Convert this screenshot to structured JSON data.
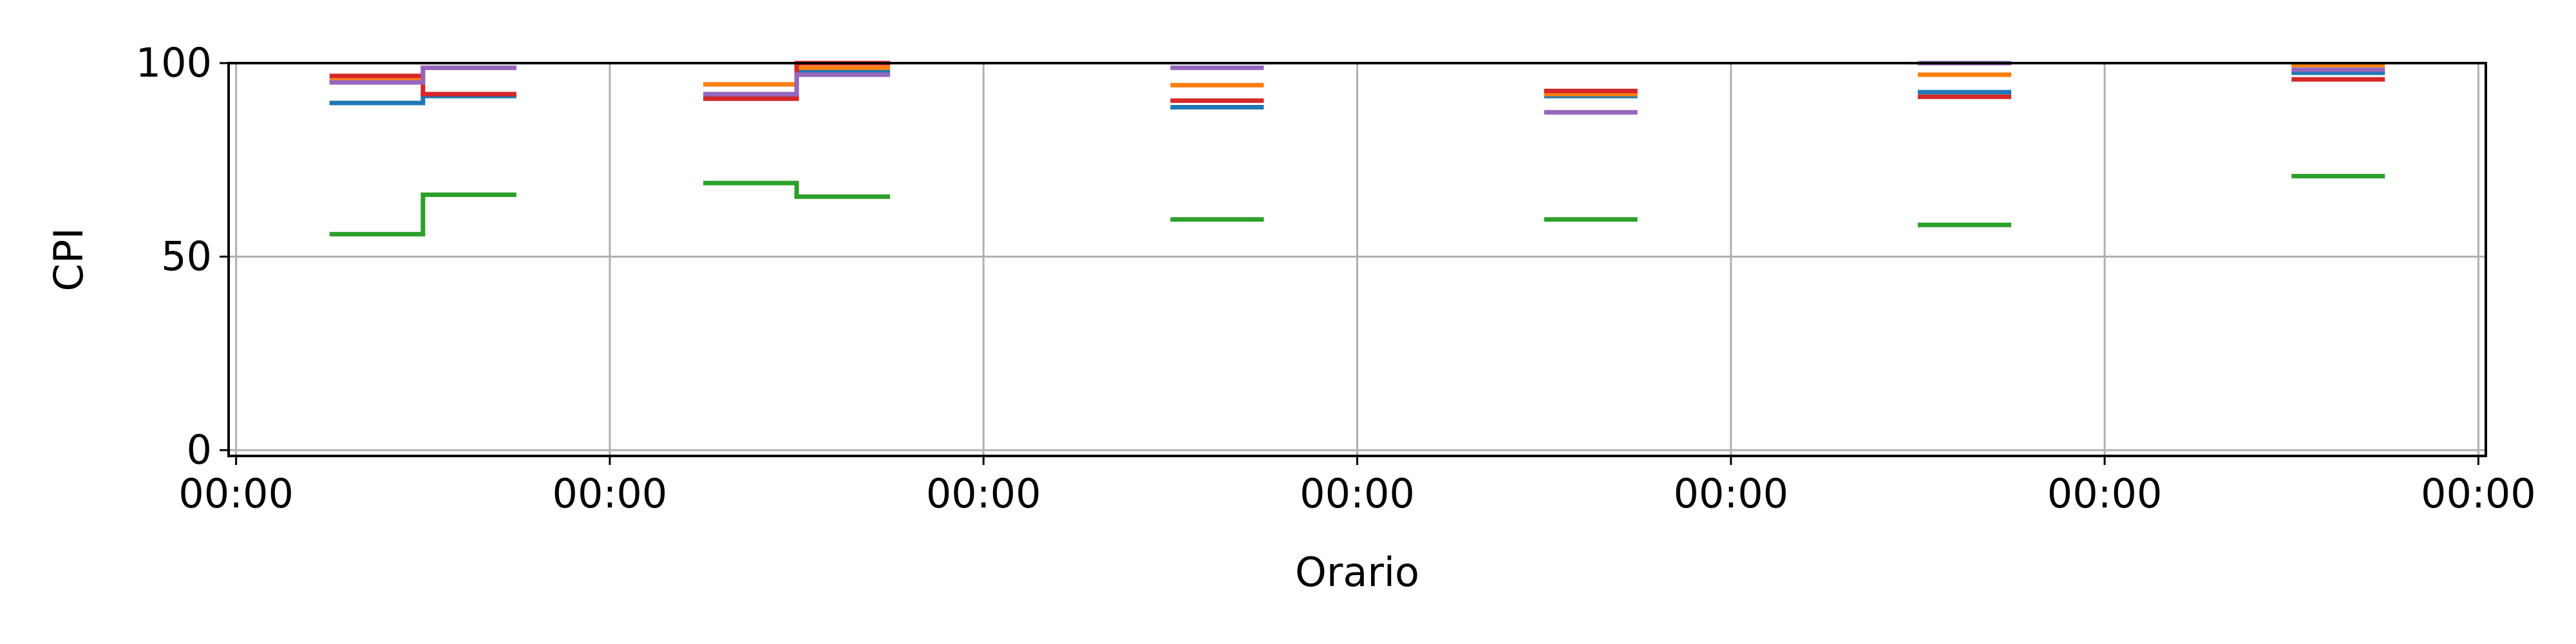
{
  "chart_data": {
    "type": "line",
    "title": "",
    "xlabel": "Orario",
    "ylabel": "CPI",
    "ylim": [
      0,
      100
    ],
    "yticks": [
      0,
      50,
      100
    ],
    "xlim": [
      0,
      6
    ],
    "xticks": [
      {
        "value": 0,
        "label": "00:00"
      },
      {
        "value": 1,
        "label": "00:00"
      },
      {
        "value": 2,
        "label": "00:00"
      },
      {
        "value": 3,
        "label": "00:00"
      },
      {
        "value": 4,
        "label": "00:00"
      },
      {
        "value": 5,
        "label": "00:00"
      },
      {
        "value": 6,
        "label": "00:00"
      }
    ],
    "grid": true,
    "legend": null,
    "drawstyle": "steps-post",
    "series": [
      {
        "color": "#1f77b4",
        "segments": [
          [
            [
              0.25,
              89.7
            ],
            [
              0.5,
              91.5
            ],
            [
              0.75,
              91.5
            ]
          ],
          [
            [
              1.25,
              91.7
            ],
            [
              1.5,
              98.0
            ],
            [
              1.75,
              98.0
            ]
          ],
          [
            [
              2.5,
              88.6
            ],
            [
              2.75,
              88.6
            ]
          ],
          [
            [
              3.5,
              91.5
            ],
            [
              3.75,
              91.5
            ]
          ],
          [
            [
              4.5,
              92.5
            ],
            [
              4.75,
              92.5
            ]
          ],
          [
            [
              5.5,
              97.5
            ],
            [
              5.75,
              97.5
            ]
          ]
        ]
      },
      {
        "color": "#ff7f0e",
        "segments": [
          [
            [
              0.25,
              95.5
            ],
            [
              0.5,
              98.8
            ],
            [
              0.75,
              98.8
            ]
          ],
          [
            [
              1.25,
              94.5
            ],
            [
              1.5,
              98.8
            ],
            [
              1.75,
              98.8
            ]
          ],
          [
            [
              2.5,
              94.3
            ],
            [
              2.75,
              94.3
            ]
          ],
          [
            [
              3.5,
              92.0
            ],
            [
              3.75,
              92.0
            ]
          ],
          [
            [
              4.5,
              97.0
            ],
            [
              4.75,
              97.0
            ]
          ],
          [
            [
              5.5,
              99.5
            ],
            [
              5.75,
              99.5
            ]
          ]
        ]
      },
      {
        "color": "#2ca02c",
        "segments": [
          [
            [
              0.25,
              55.8
            ],
            [
              0.5,
              66.0
            ],
            [
              0.75,
              66.0
            ]
          ],
          [
            [
              1.25,
              69.0
            ],
            [
              1.5,
              65.5
            ],
            [
              1.75,
              65.5
            ]
          ],
          [
            [
              2.5,
              59.6
            ],
            [
              2.75,
              59.6
            ]
          ],
          [
            [
              3.5,
              59.6
            ],
            [
              3.75,
              59.6
            ]
          ],
          [
            [
              4.5,
              58.2
            ],
            [
              4.75,
              58.2
            ]
          ],
          [
            [
              5.5,
              70.8
            ],
            [
              5.75,
              70.8
            ]
          ]
        ]
      },
      {
        "color": "#d62728",
        "segments": [
          [
            [
              0.25,
              96.7
            ],
            [
              0.5,
              92.0
            ],
            [
              0.75,
              92.0
            ]
          ],
          [
            [
              1.25,
              90.8
            ],
            [
              1.5,
              100.0
            ],
            [
              1.75,
              100.0
            ]
          ],
          [
            [
              2.5,
              90.3
            ],
            [
              2.75,
              90.3
            ]
          ],
          [
            [
              3.5,
              92.8
            ],
            [
              3.75,
              92.8
            ]
          ],
          [
            [
              4.5,
              91.3
            ],
            [
              4.75,
              91.3
            ]
          ],
          [
            [
              5.5,
              95.8
            ],
            [
              5.75,
              95.8
            ]
          ]
        ]
      },
      {
        "color": "#9467bd",
        "segments": [
          [
            [
              0.25,
              95.0
            ],
            [
              0.5,
              98.8
            ],
            [
              0.75,
              98.8
            ]
          ],
          [
            [
              1.25,
              92.0
            ],
            [
              1.5,
              97.0
            ],
            [
              1.75,
              97.0
            ]
          ],
          [
            [
              2.5,
              98.8
            ],
            [
              2.75,
              98.8
            ]
          ],
          [
            [
              3.5,
              87.3
            ],
            [
              3.75,
              87.3
            ]
          ],
          [
            [
              4.5,
              100.0
            ],
            [
              4.75,
              100.0
            ]
          ],
          [
            [
              5.5,
              98.3
            ],
            [
              5.75,
              98.3
            ]
          ]
        ]
      }
    ]
  }
}
